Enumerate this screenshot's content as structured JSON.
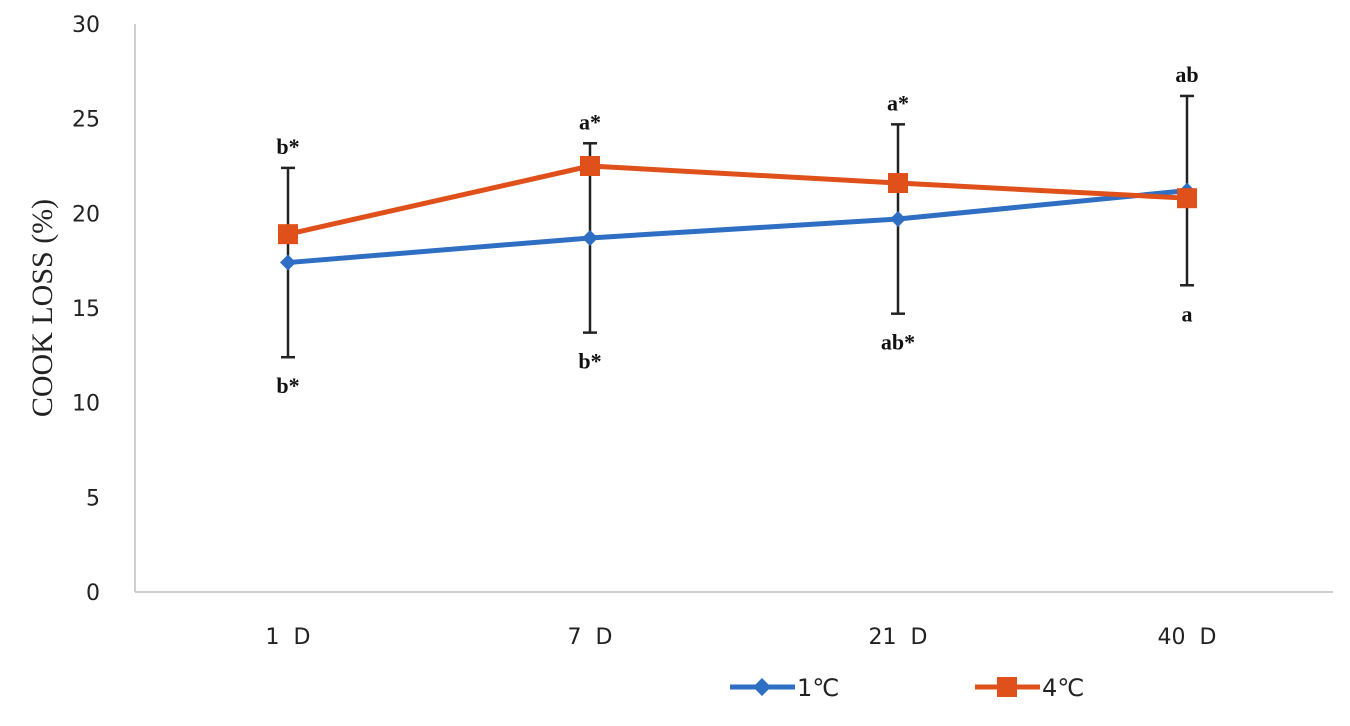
{
  "chart_data": {
    "type": "line",
    "title": "",
    "xlabel": "",
    "ylabel": "COOK LOSS (%)",
    "categories": [
      "1  D",
      "7  D",
      "21  D",
      "40  D"
    ],
    "ylim": [
      0,
      30
    ],
    "yticks": [
      0,
      5,
      10,
      15,
      20,
      25,
      30
    ],
    "grid": false,
    "legend_position": "bottom",
    "series": [
      {
        "name": "1℃",
        "color": "#2E6FC4",
        "marker": "diamond",
        "values": [
          17.4,
          18.7,
          19.7,
          21.2
        ],
        "error_low": [
          12.4,
          13.7,
          14.7,
          16.2
        ],
        "error_high": [
          22.4,
          23.7,
          24.7,
          26.2
        ],
        "annotations": [
          "b*",
          "b*",
          "ab*",
          "a"
        ],
        "annotation_side": "below"
      },
      {
        "name": "4℃",
        "color": "#E0501A",
        "marker": "square",
        "values": [
          18.9,
          22.5,
          21.6,
          20.8
        ],
        "annotations": [
          "b*",
          "a*",
          "a*",
          "ab"
        ],
        "annotation_side": "above"
      }
    ]
  }
}
